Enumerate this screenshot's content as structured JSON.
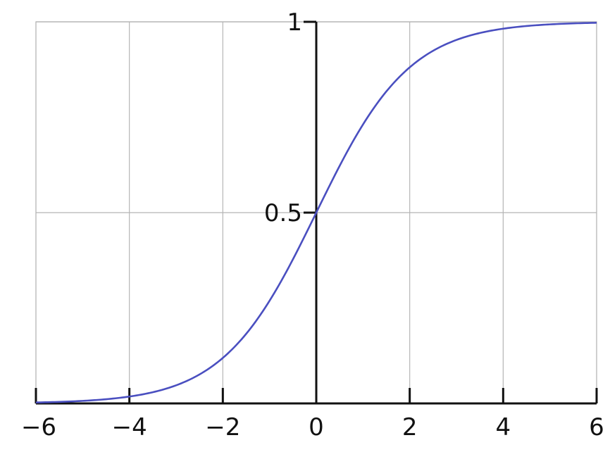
{
  "chart_data": {
    "type": "line",
    "title": "",
    "xlabel": "",
    "ylabel": "",
    "xlim": [
      -6,
      6
    ],
    "ylim": [
      0,
      1
    ],
    "grid": true,
    "x_ticks": [
      -6,
      -4,
      -2,
      0,
      2,
      4,
      6
    ],
    "x_tick_labels": [
      "−6",
      "−4",
      "−2",
      "0",
      "2",
      "4",
      "6"
    ],
    "y_ticks": [
      0.5,
      1
    ],
    "y_tick_labels": [
      "0.5",
      "1"
    ],
    "series": [
      {
        "function": "1/(1+exp(-x))",
        "color": "#4a4fc0",
        "x": [
          -6,
          -5,
          -4,
          -3,
          -2,
          -1,
          0,
          1,
          2,
          3,
          4,
          5,
          6
        ],
        "y": [
          0.0025,
          0.0067,
          0.018,
          0.047,
          0.119,
          0.269,
          0.5,
          0.731,
          0.881,
          0.953,
          0.982,
          0.9933,
          0.9975
        ]
      }
    ]
  }
}
